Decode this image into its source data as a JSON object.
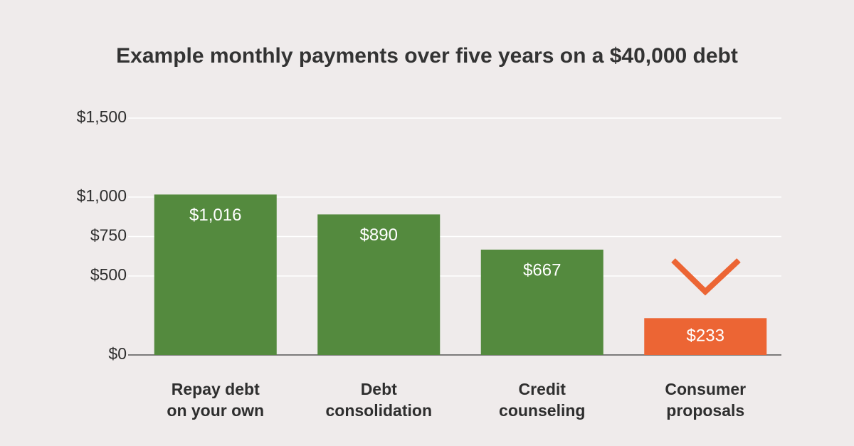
{
  "chart_data": {
    "type": "bar",
    "title": "Example monthly payments over five years on a $40,000 debt",
    "categories": [
      "Repay debt\non your own",
      "Debt\nconsolidation",
      "Credit\ncounseling",
      "Consumer\nproposals"
    ],
    "values": [
      1016,
      890,
      667,
      233
    ],
    "value_labels": [
      "$1,016",
      "$890",
      "$667",
      "$233"
    ],
    "colors": [
      "#548a3e",
      "#548a3e",
      "#548a3e",
      "#ec6534"
    ],
    "ylim": [
      0,
      1500
    ],
    "yticks": [
      {
        "value": 0,
        "label": "$0"
      },
      {
        "value": 500,
        "label": "$500"
      },
      {
        "value": 750,
        "label": "$750"
      },
      {
        "value": 1000,
        "label": "$1,000"
      },
      {
        "value": 1500,
        "label": "$1,500"
      }
    ],
    "grid": true
  }
}
